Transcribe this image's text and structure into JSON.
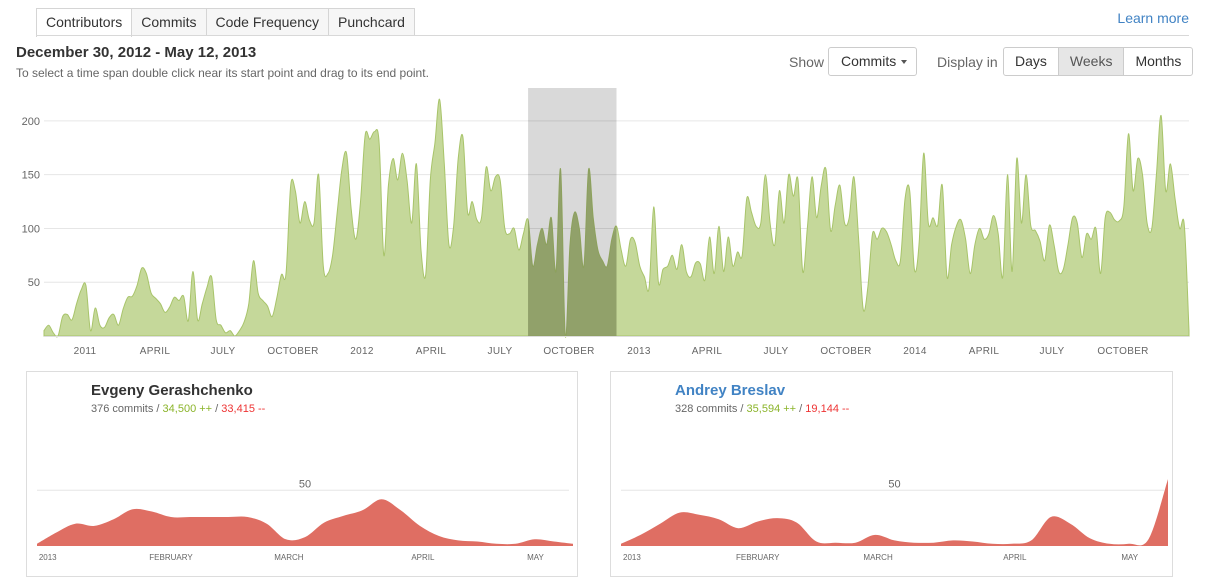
{
  "tabs": [
    {
      "label": "Contributors",
      "active": true
    },
    {
      "label": "Commits",
      "active": false
    },
    {
      "label": "Code Frequency",
      "active": false
    },
    {
      "label": "Punchcard",
      "active": false
    }
  ],
  "learn_more": "Learn more",
  "range_title": "December 30, 2012 - May 12, 2013",
  "range_hint": "To select a time span double click near its start point and drag to its end point.",
  "show": {
    "label": "Show",
    "selected": "Commits"
  },
  "display": {
    "label": "Display in",
    "options": [
      {
        "label": "Days",
        "active": false
      },
      {
        "label": "Weeks",
        "active": true
      },
      {
        "label": "Months",
        "active": false
      }
    ]
  },
  "colors": {
    "area": "#c5d89a",
    "area_line": "#a8c46a",
    "selection": "#8a9a62",
    "card_area": "#df6e63",
    "additions": "#8bb42a",
    "deletions": "#ee3333"
  },
  "chart_data": [
    {
      "type": "area",
      "title": "",
      "y_ticks": [
        50,
        100,
        150,
        200
      ],
      "ylim": [
        0,
        225
      ],
      "x_tick_labels": [
        "2011",
        "APRIL",
        "JULY",
        "OCTOBER",
        "2012",
        "APRIL",
        "JULY",
        "OCTOBER",
        "2013",
        "APRIL",
        "JULY",
        "OCTOBER",
        "2014",
        "APRIL",
        "JULY",
        "OCTOBER"
      ],
      "selection_weeks": [
        104,
        123
      ],
      "values": [
        5,
        10,
        3,
        0,
        18,
        20,
        15,
        30,
        43,
        47,
        5,
        26,
        10,
        8,
        17,
        20,
        10,
        25,
        36,
        37,
        47,
        63,
        58,
        40,
        35,
        30,
        22,
        27,
        36,
        33,
        37,
        14,
        60,
        15,
        30,
        45,
        55,
        15,
        10,
        3,
        5,
        0,
        5,
        13,
        30,
        70,
        40,
        33,
        28,
        18,
        35,
        57,
        58,
        140,
        135,
        105,
        125,
        108,
        105,
        150,
        65,
        58,
        75,
        115,
        155,
        170,
        118,
        90,
        125,
        187,
        183,
        190,
        180,
        75,
        140,
        165,
        145,
        170,
        145,
        105,
        160,
        80,
        57,
        145,
        180,
        220,
        160,
        85,
        102,
        165,
        185,
        115,
        125,
        108,
        110,
        157,
        135,
        148,
        145,
        100,
        95,
        100,
        80,
        95,
        108,
        65,
        85,
        100,
        85,
        110,
        60,
        155,
        0,
        85,
        115,
        100,
        65,
        155,
        110,
        80,
        70,
        65,
        90,
        102,
        80,
        65,
        90,
        87,
        65,
        55,
        45,
        120,
        50,
        62,
        65,
        75,
        62,
        85,
        60,
        55,
        68,
        67,
        52,
        92,
        58,
        102,
        60,
        92,
        65,
        78,
        75,
        128,
        115,
        102,
        105,
        150,
        105,
        85,
        135,
        105,
        150,
        130,
        145,
        60,
        100,
        148,
        110,
        140,
        155,
        98,
        122,
        140,
        105,
        110,
        148,
        92,
        25,
        45,
        95,
        90,
        100,
        97,
        85,
        70,
        70,
        128,
        135,
        62,
        85,
        170,
        105,
        110,
        103,
        140,
        55,
        85,
        102,
        108,
        90,
        58,
        85,
        100,
        90,
        95,
        112,
        95,
        55,
        150,
        60,
        165,
        105,
        150,
        103,
        98,
        88,
        70,
        103,
        85,
        60,
        62,
        85,
        110,
        105,
        73,
        95,
        90,
        100,
        58,
        110,
        115,
        108,
        107,
        120,
        188,
        135,
        165,
        150,
        105,
        100,
        150,
        205,
        135,
        160,
        128,
        100,
        103,
        5
      ]
    },
    {
      "type": "area",
      "contributor": "Evgeny Gerashchenko",
      "y_tick": 50,
      "x_tick_labels": [
        "2013",
        "FEBRUARY",
        "MARCH",
        "APRIL",
        "MAY"
      ],
      "values": [
        2,
        12,
        20,
        18,
        24,
        33,
        31,
        26,
        26,
        26,
        26,
        26,
        20,
        6,
        8,
        21,
        27,
        32,
        42,
        32,
        18,
        9,
        5,
        4,
        2,
        2,
        6,
        4,
        2
      ]
    },
    {
      "type": "area",
      "contributor": "Andrey Breslav",
      "y_tick": 50,
      "x_tick_labels": [
        "2013",
        "FEBRUARY",
        "MARCH",
        "APRIL",
        "MAY"
      ],
      "values": [
        2,
        10,
        20,
        30,
        28,
        24,
        16,
        22,
        25,
        21,
        4,
        3,
        3,
        10,
        5,
        3,
        3,
        5,
        4,
        2,
        2,
        5,
        26,
        20,
        7,
        2,
        2,
        6,
        60
      ]
    }
  ],
  "contributors": [
    {
      "name": "Evgeny Gerashchenko",
      "commits": "376 commits",
      "sep1": "/",
      "additions": "34,500 ++",
      "sep2": "/",
      "deletions": "33,415 --"
    },
    {
      "name": "Andrey Breslav",
      "commits": "328 commits",
      "sep1": "/",
      "additions": "35,594 ++",
      "sep2": "/",
      "deletions": "19,144 --"
    }
  ]
}
